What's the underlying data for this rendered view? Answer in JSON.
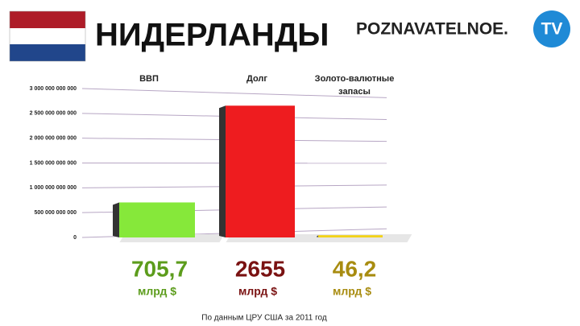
{
  "header": {
    "title": "НИДЕРЛАНДЫ",
    "logo_text": "POZNAVATELNOE.",
    "logo_badge": "TV"
  },
  "chart_data": {
    "type": "bar",
    "categories": [
      "ВВП",
      "Долг",
      "Золото-валютные запасы"
    ],
    "values": [
      705700000000,
      2655000000000,
      46200000000
    ],
    "value_labels": [
      "705,7",
      "2655",
      "46,2"
    ],
    "value_unit": "млрд $",
    "colors": [
      "#86e83a",
      "#ee1c1f",
      "#f2d21a"
    ],
    "label_colors": [
      "#5c9c1c",
      "#7a1212",
      "#a88c10"
    ],
    "ylim": [
      0,
      3000000000000
    ],
    "yticks": [
      0,
      {
        "value": 500000000000,
        "label": "500 000 000 000"
      },
      {
        "value": 1000000000000,
        "label": "1 000 000 000 000"
      },
      {
        "value": 1500000000000,
        "label": "1 500 000 000 000"
      },
      {
        "value": 2000000000000,
        "label": "2 000 000 000 000"
      },
      {
        "value": 2500000000000,
        "label": "2 500 000 000 000"
      },
      {
        "value": 3000000000000,
        "label": "3 000 000 000 000"
      }
    ],
    "grid": true
  },
  "footer": {
    "source": "По данным ЦРУ США за 2011 год"
  }
}
